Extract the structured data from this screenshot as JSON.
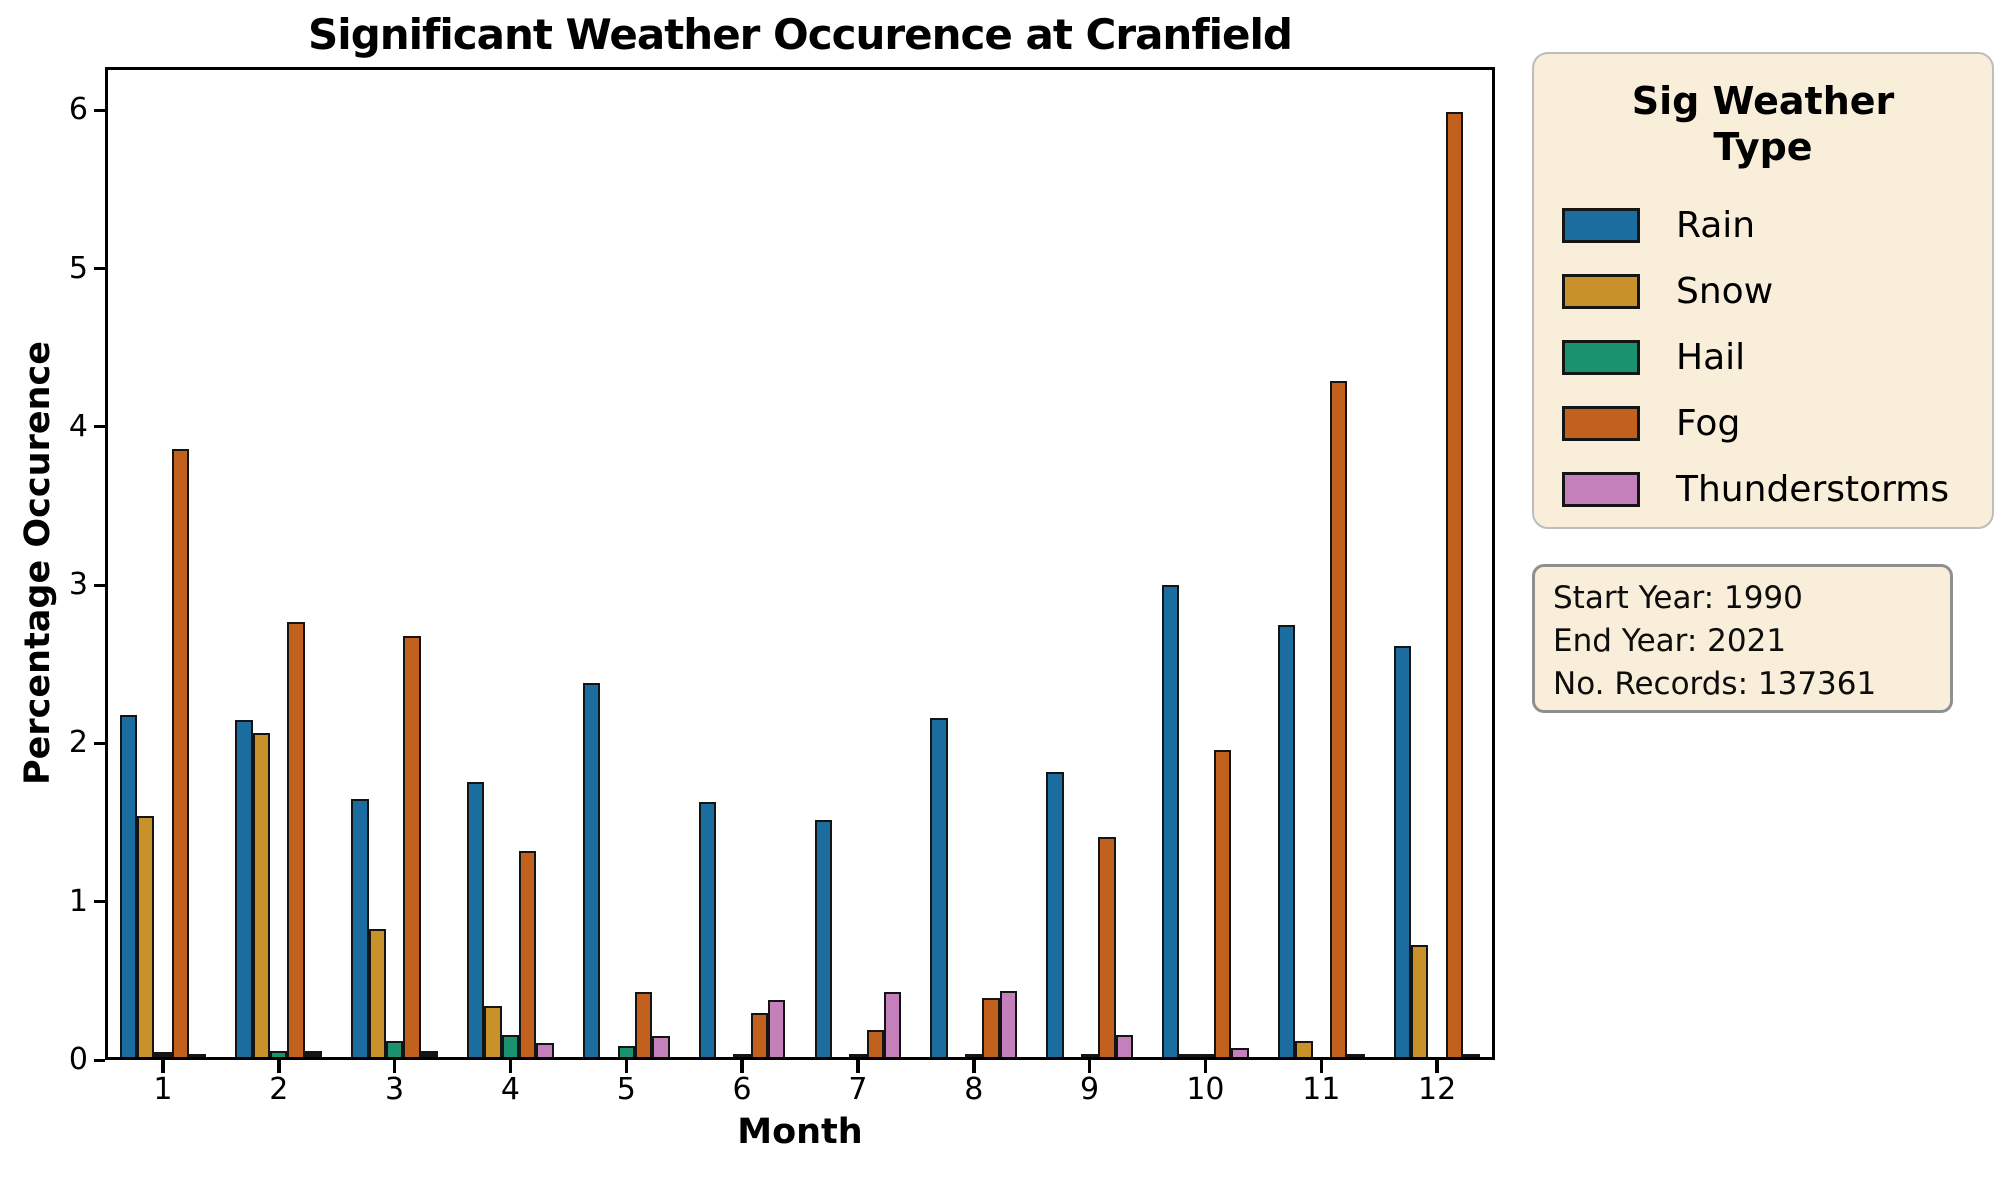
{
  "title": "Significant Weather Occurence at Cranfield",
  "x_axis": {
    "label": "Month",
    "ticks": [
      "1",
      "2",
      "3",
      "4",
      "5",
      "6",
      "7",
      "8",
      "9",
      "10",
      "11",
      "12"
    ]
  },
  "y_axis": {
    "label": "Percentage Occurence",
    "ticks": [
      "0",
      "1",
      "2",
      "3",
      "4",
      "5",
      "6"
    ]
  },
  "legend": {
    "title_line1": "Sig Weather",
    "title_line2": "Type",
    "entries": [
      {
        "label": "Rain",
        "color": "#1a6d9e"
      },
      {
        "label": "Snow",
        "color": "#c8912a"
      },
      {
        "label": "Hail",
        "color": "#1a9270"
      },
      {
        "label": "Fog",
        "color": "#c2611e"
      },
      {
        "label": "Thunderstorms",
        "color": "#c480ba"
      }
    ]
  },
  "info_box": {
    "start_year_label": "Start Year: 1990",
    "end_year_label": "End Year: 2021",
    "records_label": "No. Records: 137361"
  },
  "chart_data": {
    "type": "bar",
    "title": "Significant Weather Occurence at Cranfield",
    "xlabel": "Month",
    "ylabel": "Percentage Occurence",
    "categories": [
      1,
      2,
      3,
      4,
      5,
      6,
      7,
      8,
      9,
      10,
      11,
      12
    ],
    "series": [
      {
        "name": "Rain",
        "color": "#1a6d9e",
        "values": [
          2.16,
          2.13,
          1.63,
          1.74,
          2.36,
          1.61,
          1.5,
          2.14,
          1.8,
          2.98,
          2.73,
          2.6
        ]
      },
      {
        "name": "Snow",
        "color": "#c8912a",
        "values": [
          1.52,
          2.05,
          0.81,
          0.32,
          0,
          0,
          0,
          0,
          0,
          0.01,
          0.1,
          0.71
        ]
      },
      {
        "name": "Hail",
        "color": "#1a9270",
        "values": [
          0.02,
          0.04,
          0.1,
          0.14,
          0.07,
          0.01,
          0.01,
          0.01,
          0.01,
          0.01,
          0,
          0
        ]
      },
      {
        "name": "Fog",
        "color": "#c2611e",
        "values": [
          3.84,
          2.75,
          2.66,
          1.3,
          0.41,
          0.28,
          0.17,
          0.37,
          1.39,
          1.94,
          4.27,
          5.97
        ]
      },
      {
        "name": "Thunderstorms",
        "color": "#c480ba",
        "values": [
          0.01,
          0.03,
          0.03,
          0.09,
          0.13,
          0.36,
          0.41,
          0.42,
          0.14,
          0.06,
          0.01,
          0.01
        ]
      }
    ],
    "ylim": [
      0,
      6.27
    ],
    "grid": false,
    "legend_position": "right",
    "legend_title": "Sig Weather Type",
    "annotations": [
      "Start Year: 1990",
      "End Year: 2021",
      "No. Records: 137361"
    ]
  }
}
